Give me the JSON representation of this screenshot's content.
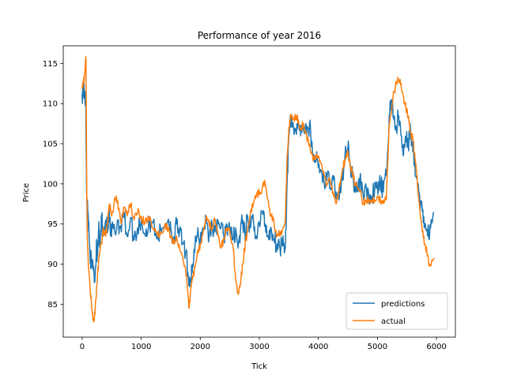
{
  "chart_data": {
    "type": "line",
    "title": "Performance of year 2016",
    "xlabel": "Tick",
    "ylabel": "Price",
    "xlim": [
      -320,
      6320
    ],
    "ylim": [
      80.9,
      117.2
    ],
    "xticks": [
      0,
      1000,
      2000,
      3000,
      4000,
      5000,
      6000
    ],
    "yticks": [
      85,
      90,
      95,
      100,
      105,
      110,
      115
    ],
    "grid": false,
    "legend_position": "lower-right",
    "series": [
      {
        "name": "predictions",
        "color": "#1f77b4",
        "points": [
          [
            0,
            111.2
          ],
          [
            20,
            111.8
          ],
          [
            40,
            111.0
          ],
          [
            60,
            110.6
          ],
          [
            70,
            103.0
          ],
          [
            80,
            97.5
          ],
          [
            100,
            96.5
          ],
          [
            120,
            93.0
          ],
          [
            140,
            91.0
          ],
          [
            160,
            89.5
          ],
          [
            180,
            90.5
          ],
          [
            200,
            89.0
          ],
          [
            220,
            88.6
          ],
          [
            240,
            92.0
          ],
          [
            260,
            91.0
          ],
          [
            280,
            94.5
          ],
          [
            300,
            92.0
          ],
          [
            330,
            96.0
          ],
          [
            360,
            94.0
          ],
          [
            400,
            95.5
          ],
          [
            430,
            94.0
          ],
          [
            460,
            96.5
          ],
          [
            480,
            93.5
          ],
          [
            520,
            94.5
          ],
          [
            560,
            93.8
          ],
          [
            600,
            95.5
          ],
          [
            640,
            94.5
          ],
          [
            700,
            96.5
          ],
          [
            760,
            93.5
          ],
          [
            820,
            95.8
          ],
          [
            880,
            93.0
          ],
          [
            940,
            94.5
          ],
          [
            1000,
            95.5
          ],
          [
            1060,
            93.8
          ],
          [
            1120,
            94.5
          ],
          [
            1200,
            95.2
          ],
          [
            1280,
            93.5
          ],
          [
            1340,
            94.0
          ],
          [
            1400,
            95.0
          ],
          [
            1460,
            95.6
          ],
          [
            1500,
            94.5
          ],
          [
            1560,
            93.0
          ],
          [
            1600,
            95.0
          ],
          [
            1650,
            94.0
          ],
          [
            1700,
            92.5
          ],
          [
            1750,
            91.5
          ],
          [
            1790,
            89.0
          ],
          [
            1830,
            87.8
          ],
          [
            1870,
            90.0
          ],
          [
            1910,
            92.0
          ],
          [
            1950,
            93.5
          ],
          [
            2000,
            93.0
          ],
          [
            2050,
            94.5
          ],
          [
            2100,
            95.5
          ],
          [
            2150,
            93.5
          ],
          [
            2200,
            95.0
          ],
          [
            2250,
            94.0
          ],
          [
            2300,
            95.5
          ],
          [
            2350,
            94.5
          ],
          [
            2400,
            93.5
          ],
          [
            2450,
            95.0
          ],
          [
            2500,
            94.0
          ],
          [
            2550,
            93.0
          ],
          [
            2600,
            94.5
          ],
          [
            2640,
            92.0
          ],
          [
            2680,
            94.0
          ],
          [
            2720,
            95.5
          ],
          [
            2760,
            93.0
          ],
          [
            2800,
            96.0
          ],
          [
            2850,
            94.5
          ],
          [
            2900,
            95.5
          ],
          [
            2950,
            93.5
          ],
          [
            3000,
            95.0
          ],
          [
            3050,
            96.5
          ],
          [
            3100,
            95.0
          ],
          [
            3150,
            93.5
          ],
          [
            3200,
            94.5
          ],
          [
            3250,
            93.0
          ],
          [
            3300,
            92.5
          ],
          [
            3350,
            92.0
          ],
          [
            3400,
            93.5
          ],
          [
            3440,
            92.0
          ],
          [
            3470,
            100.0
          ],
          [
            3500,
            106.0
          ],
          [
            3540,
            108.0
          ],
          [
            3580,
            107.0
          ],
          [
            3620,
            106.5
          ],
          [
            3660,
            107.8
          ],
          [
            3700,
            106.0
          ],
          [
            3750,
            107.5
          ],
          [
            3800,
            106.0
          ],
          [
            3850,
            107.5
          ],
          [
            3900,
            104.0
          ],
          [
            3950,
            103.5
          ],
          [
            4000,
            102.0
          ],
          [
            4050,
            101.5
          ],
          [
            4100,
            100.0
          ],
          [
            4150,
            101.0
          ],
          [
            4200,
            99.5
          ],
          [
            4250,
            100.5
          ],
          [
            4300,
            99.0
          ],
          [
            4350,
            98.0
          ],
          [
            4400,
            100.5
          ],
          [
            4450,
            103.5
          ],
          [
            4500,
            104.5
          ],
          [
            4540,
            102.5
          ],
          [
            4580,
            101.0
          ],
          [
            4620,
            100.0
          ],
          [
            4660,
            99.0
          ],
          [
            4700,
            100.5
          ],
          [
            4760,
            98.5
          ],
          [
            4800,
            100.0
          ],
          [
            4860,
            97.5
          ],
          [
            4900,
            98.5
          ],
          [
            4950,
            99.0
          ],
          [
            5000,
            99.5
          ],
          [
            5050,
            100.0
          ],
          [
            5100,
            99.0
          ],
          [
            5150,
            101.0
          ],
          [
            5200,
            108.5
          ],
          [
            5240,
            110.5
          ],
          [
            5280,
            108.0
          ],
          [
            5320,
            107.0
          ],
          [
            5360,
            108.5
          ],
          [
            5400,
            106.0
          ],
          [
            5440,
            103.5
          ],
          [
            5480,
            105.5
          ],
          [
            5520,
            105.0
          ],
          [
            5560,
            107.0
          ],
          [
            5600,
            104.0
          ],
          [
            5650,
            101.0
          ],
          [
            5700,
            99.0
          ],
          [
            5760,
            96.5
          ],
          [
            5800,
            95.0
          ],
          [
            5850,
            93.5
          ],
          [
            5900,
            94.5
          ],
          [
            5950,
            96.5
          ]
        ]
      },
      {
        "name": "actual",
        "color": "#ff7f0e",
        "points": [
          [
            0,
            111.8
          ],
          [
            20,
            112.5
          ],
          [
            40,
            113.5
          ],
          [
            55,
            115.2
          ],
          [
            65,
            115.6
          ],
          [
            75,
            102.0
          ],
          [
            85,
            94.0
          ],
          [
            100,
            91.0
          ],
          [
            120,
            88.5
          ],
          [
            140,
            86.5
          ],
          [
            160,
            84.5
          ],
          [
            180,
            83.5
          ],
          [
            200,
            82.8
          ],
          [
            220,
            84.5
          ],
          [
            240,
            86.0
          ],
          [
            260,
            88.5
          ],
          [
            280,
            90.5
          ],
          [
            300,
            91.5
          ],
          [
            330,
            92.5
          ],
          [
            360,
            94.5
          ],
          [
            400,
            93.5
          ],
          [
            430,
            95.0
          ],
          [
            460,
            97.5
          ],
          [
            500,
            96.0
          ],
          [
            540,
            97.5
          ],
          [
            580,
            98.5
          ],
          [
            620,
            97.0
          ],
          [
            660,
            95.0
          ],
          [
            700,
            97.0
          ],
          [
            760,
            96.0
          ],
          [
            820,
            97.5
          ],
          [
            880,
            95.5
          ],
          [
            940,
            96.5
          ],
          [
            1000,
            96.0
          ],
          [
            1060,
            95.0
          ],
          [
            1120,
            96.0
          ],
          [
            1200,
            94.5
          ],
          [
            1280,
            93.5
          ],
          [
            1340,
            94.0
          ],
          [
            1400,
            95.0
          ],
          [
            1460,
            94.5
          ],
          [
            1500,
            93.5
          ],
          [
            1560,
            92.5
          ],
          [
            1600,
            93.5
          ],
          [
            1650,
            92.0
          ],
          [
            1700,
            91.0
          ],
          [
            1750,
            89.5
          ],
          [
            1790,
            86.5
          ],
          [
            1810,
            84.5
          ],
          [
            1830,
            86.0
          ],
          [
            1870,
            88.5
          ],
          [
            1910,
            89.5
          ],
          [
            1950,
            91.5
          ],
          [
            2000,
            92.5
          ],
          [
            2050,
            94.0
          ],
          [
            2100,
            96.0
          ],
          [
            2150,
            95.0
          ],
          [
            2200,
            94.5
          ],
          [
            2250,
            95.5
          ],
          [
            2300,
            93.5
          ],
          [
            2350,
            92.0
          ],
          [
            2400,
            93.0
          ],
          [
            2450,
            94.5
          ],
          [
            2500,
            94.0
          ],
          [
            2550,
            92.5
          ],
          [
            2600,
            88.0
          ],
          [
            2640,
            86.5
          ],
          [
            2680,
            87.5
          ],
          [
            2720,
            90.0
          ],
          [
            2760,
            92.5
          ],
          [
            2800,
            94.0
          ],
          [
            2850,
            96.5
          ],
          [
            2900,
            97.5
          ],
          [
            2950,
            98.5
          ],
          [
            3000,
            99.0
          ],
          [
            3050,
            99.5
          ],
          [
            3100,
            100.0
          ],
          [
            3150,
            98.0
          ],
          [
            3200,
            96.0
          ],
          [
            3250,
            95.0
          ],
          [
            3300,
            93.5
          ],
          [
            3350,
            94.0
          ],
          [
            3400,
            94.5
          ],
          [
            3440,
            95.5
          ],
          [
            3470,
            103.5
          ],
          [
            3500,
            107.0
          ],
          [
            3540,
            108.5
          ],
          [
            3580,
            108.0
          ],
          [
            3620,
            108.5
          ],
          [
            3660,
            108.0
          ],
          [
            3700,
            107.0
          ],
          [
            3750,
            107.5
          ],
          [
            3800,
            106.0
          ],
          [
            3850,
            105.0
          ],
          [
            3900,
            103.5
          ],
          [
            3950,
            103.0
          ],
          [
            4000,
            103.5
          ],
          [
            4050,
            102.5
          ],
          [
            4100,
            101.0
          ],
          [
            4150,
            100.0
          ],
          [
            4200,
            100.5
          ],
          [
            4250,
            99.0
          ],
          [
            4300,
            97.5
          ],
          [
            4350,
            99.5
          ],
          [
            4400,
            101.5
          ],
          [
            4450,
            103.0
          ],
          [
            4500,
            104.0
          ],
          [
            4540,
            102.0
          ],
          [
            4580,
            101.5
          ],
          [
            4620,
            100.0
          ],
          [
            4660,
            99.5
          ],
          [
            4700,
            99.0
          ],
          [
            4760,
            97.5
          ],
          [
            4800,
            98.0
          ],
          [
            4860,
            98.0
          ],
          [
            4900,
            98.0
          ],
          [
            4950,
            98.0
          ],
          [
            5000,
            98.5
          ],
          [
            5050,
            98.0
          ],
          [
            5100,
            98.0
          ],
          [
            5150,
            98.0
          ],
          [
            5200,
            107.5
          ],
          [
            5240,
            109.0
          ],
          [
            5280,
            111.5
          ],
          [
            5320,
            112.5
          ],
          [
            5360,
            113.0
          ],
          [
            5400,
            112.5
          ],
          [
            5440,
            111.0
          ],
          [
            5480,
            109.5
          ],
          [
            5520,
            108.5
          ],
          [
            5560,
            106.5
          ],
          [
            5600,
            105.5
          ],
          [
            5650,
            102.5
          ],
          [
            5700,
            98.0
          ],
          [
            5760,
            94.0
          ],
          [
            5800,
            92.5
          ],
          [
            5850,
            91.0
          ],
          [
            5880,
            90.0
          ],
          [
            5920,
            90.5
          ],
          [
            5960,
            90.8
          ]
        ]
      }
    ]
  }
}
